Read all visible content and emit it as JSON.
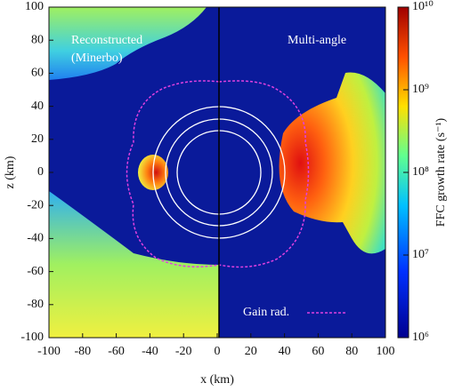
{
  "chart_data": {
    "type": "heatmap",
    "xlabel": "x (km)",
    "ylabel": "z (km)",
    "xlim": [
      -100,
      100
    ],
    "ylim": [
      -100,
      100
    ],
    "xticks": [
      -100,
      -80,
      -60,
      -40,
      -20,
      0,
      20,
      40,
      60,
      80,
      100
    ],
    "yticks": [
      -100,
      -80,
      -60,
      -40,
      -20,
      0,
      20,
      40,
      60,
      80,
      100
    ],
    "colorbar": {
      "label": "FFC growth rate (s⁻¹)",
      "log": true,
      "lim": [
        1000000,
        10000000000
      ],
      "ticks": [
        {
          "value": 1000000,
          "label": "10⁶"
        },
        {
          "value": 10000000,
          "label": "10⁷"
        },
        {
          "value": 100000000,
          "label": "10⁸"
        },
        {
          "value": 1000000000,
          "label": "10⁹"
        },
        {
          "value": 10000000000,
          "label": "10¹⁰"
        }
      ]
    },
    "annotations": [
      "Reconstructed",
      "(Minerbo)",
      "Multi-angle"
    ],
    "legend": {
      "name": "Gain rad.",
      "color": "#e040e0"
    }
  }
}
